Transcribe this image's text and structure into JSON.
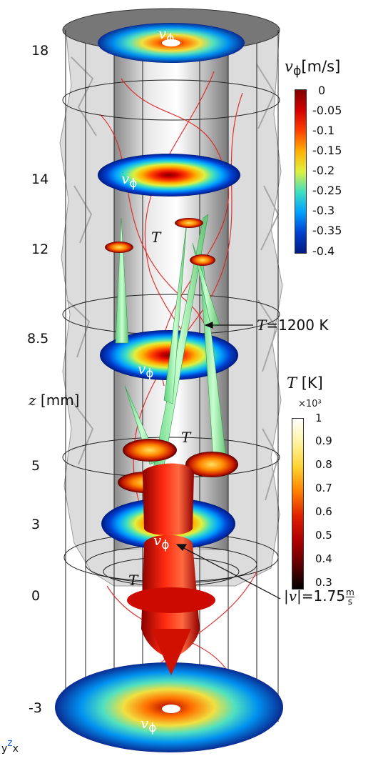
{
  "z_axis": {
    "title": "z",
    "unit": "[mm]",
    "ticks": [
      "18",
      "14",
      "12",
      "8.5",
      "5",
      "3",
      "0",
      "-3"
    ]
  },
  "colorbar_velocity": {
    "symbol": "v",
    "subscript": "ϕ",
    "unit": "[m/s]",
    "ticks": [
      "0",
      "-0.05",
      "-0.1",
      "-0.15",
      "-0.2",
      "-0.25",
      "-0.3",
      "-0.35",
      "-0.4"
    ],
    "colormap": [
      "#7f0000",
      "#d40000",
      "#ff4000",
      "#ffb000",
      "#e0f040",
      "#40e0c0",
      "#00a0ff",
      "#0040d0",
      "#001a80"
    ]
  },
  "colorbar_temperature": {
    "symbol": "T",
    "unit": "[K]",
    "scale": "×10³",
    "ticks": [
      "1",
      "0.9",
      "0.8",
      "0.7",
      "0.6",
      "0.5",
      "0.4",
      "0.3"
    ],
    "colormap": [
      "#ffffff",
      "#fff2a0",
      "#ffd230",
      "#ff8000",
      "#e02000",
      "#b00000",
      "#600000",
      "#000000"
    ]
  },
  "slice_labels": {
    "v": "v",
    "phi": "ϕ",
    "T": "T"
  },
  "annotations": {
    "isotherm_symbol": "T",
    "isotherm_value": "=1200 K",
    "speed_symbol": "|v|",
    "speed_value": "=1.75",
    "speed_unit_num": "m",
    "speed_unit_den": "s"
  },
  "triad": {
    "y": "y",
    "z": "z",
    "x": "x"
  }
}
